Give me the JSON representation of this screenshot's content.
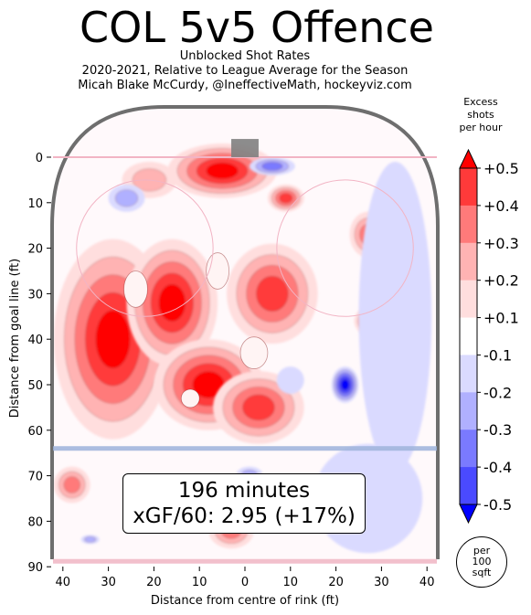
{
  "title": "COL 5v5 Offence",
  "subtitle_lines": [
    "Unblocked Shot Rates",
    "2020-2021, Relative to League Average for the Season",
    "Micah Blake McCurdy, @IneffectiveMath, hockeyviz.com"
  ],
  "colorbar": {
    "title_lines": [
      "Excess",
      "shots",
      "per hour"
    ],
    "tick_labels": [
      "+0.5",
      "+0.4",
      "+0.3",
      "+0.2",
      "+0.1",
      "-0.1",
      "-0.2",
      "-0.3",
      "-0.4",
      "-0.5"
    ],
    "colors": [
      "#ff0000",
      "#ff3a3a",
      "#ff7a7a",
      "#ffb3b3",
      "#ffdede",
      "#ffffff",
      "#dadaff",
      "#b0b0ff",
      "#7a7aff",
      "#4a4aff",
      "#0000ff"
    ]
  },
  "per_area": [
    "per",
    "100",
    "sqft"
  ],
  "annotation": {
    "minutes": "196 minutes",
    "xgf": "xGF/60: 2.95 (+17%)"
  },
  "chart_data": {
    "type": "heatmap",
    "title": "COL 5v5 Offence",
    "xlabel": "Distance from centre of rink (ft)",
    "ylabel": "Distance from goal line (ft)",
    "x_ticks": [
      "40",
      "30",
      "20",
      "10",
      "0",
      "10",
      "20",
      "30",
      "40"
    ],
    "x_tick_values": [
      -40,
      -30,
      -20,
      -10,
      0,
      10,
      20,
      30,
      40
    ],
    "y_ticks": [
      "0",
      "10",
      "20",
      "30",
      "40",
      "50",
      "60",
      "70",
      "80",
      "90"
    ],
    "y_tick_values": [
      0,
      10,
      20,
      30,
      40,
      50,
      60,
      70,
      80,
      90
    ],
    "xlim": [
      -42.5,
      42.5
    ],
    "ylim": [
      -11,
      90
    ],
    "y_inverted": true,
    "value_range": [
      -0.5,
      0.5
    ],
    "blobs": [
      {
        "x": -29,
        "y": 40,
        "rx": 13,
        "ry": 22,
        "value": 0.5
      },
      {
        "x": -16,
        "y": 32,
        "rx": 10,
        "ry": 14,
        "value": 0.45
      },
      {
        "x": -8,
        "y": 50,
        "rx": 12,
        "ry": 10,
        "value": 0.45
      },
      {
        "x": 6,
        "y": 30,
        "rx": 10,
        "ry": 11,
        "value": 0.4
      },
      {
        "x": -5,
        "y": 3,
        "rx": 12,
        "ry": 6,
        "value": 0.45
      },
      {
        "x": 9,
        "y": 9,
        "rx": 4,
        "ry": 3,
        "value": 0.4
      },
      {
        "x": 3,
        "y": 55,
        "rx": 10,
        "ry": 8,
        "value": 0.4
      },
      {
        "x": -21,
        "y": 5,
        "rx": 6,
        "ry": 4,
        "value": 0.2
      },
      {
        "x": 27,
        "y": 17,
        "rx": 4,
        "ry": 5,
        "value": 0.35
      },
      {
        "x": 27,
        "y": 36,
        "rx": 3,
        "ry": 3,
        "value": 0.3
      },
      {
        "x": 34,
        "y": 54,
        "rx": 4,
        "ry": 3,
        "value": 0.3
      },
      {
        "x": -38,
        "y": 72,
        "rx": 4,
        "ry": 4,
        "value": 0.3
      },
      {
        "x": -3,
        "y": 82,
        "rx": 5,
        "ry": 4,
        "value": 0.3
      },
      {
        "x": -26,
        "y": 9,
        "rx": 4,
        "ry": 3,
        "value": -0.2
      },
      {
        "x": 22,
        "y": 50,
        "rx": 3,
        "ry": 4,
        "value": -0.45
      },
      {
        "x": 33,
        "y": 35,
        "rx": 8,
        "ry": 34,
        "value": -0.15
      },
      {
        "x": 27,
        "y": 75,
        "rx": 12,
        "ry": 12,
        "value": -0.15
      },
      {
        "x": 10,
        "y": 49,
        "rx": 3,
        "ry": 3,
        "value": -0.15
      },
      {
        "x": 6,
        "y": 2,
        "rx": 5,
        "ry": 2,
        "value": -0.25
      },
      {
        "x": 1,
        "y": 70,
        "rx": 3,
        "ry": 2,
        "value": -0.2
      },
      {
        "x": -34,
        "y": 84,
        "rx": 2,
        "ry": 1,
        "value": -0.2
      }
    ]
  }
}
